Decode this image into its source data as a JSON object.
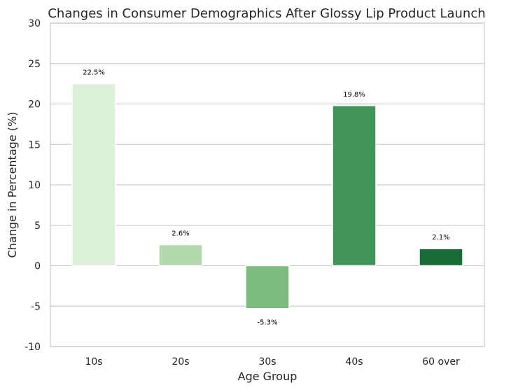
{
  "chart_data": {
    "type": "bar",
    "title": "Changes in Consumer Demographics After Glossy Lip Product Launch",
    "xlabel": "Age Group",
    "ylabel": "Change in Percentage (%)",
    "categories": [
      "10s",
      "20s",
      "30s",
      "40s",
      "60 over"
    ],
    "values": [
      22.5,
      2.6,
      -5.3,
      19.8,
      2.1
    ],
    "data_labels": [
      "22.5%",
      "2.6%",
      "-5.3%",
      "19.8%",
      "2.1%"
    ],
    "bar_colors": [
      "#ddf0d9",
      "#b4d9ae",
      "#7dbb7f",
      "#419558",
      "#176c35"
    ],
    "ylim": [
      -10,
      30
    ],
    "yticks": [
      -10,
      -5,
      0,
      5,
      10,
      15,
      20,
      25,
      30
    ],
    "ytick_labels": [
      "-10",
      "-5",
      "0",
      "5",
      "10",
      "15",
      "20",
      "25",
      "30"
    ],
    "grid": true,
    "grid_axis": "y",
    "legend": false
  }
}
